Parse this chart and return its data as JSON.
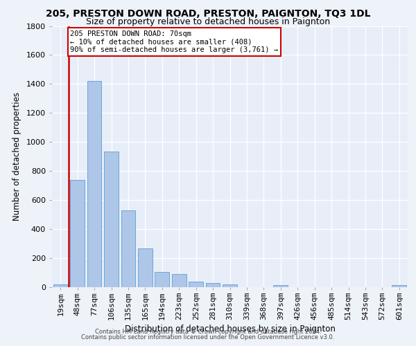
{
  "title1": "205, PRESTON DOWN ROAD, PRESTON, PAIGNTON, TQ3 1DL",
  "title2": "Size of property relative to detached houses in Paignton",
  "xlabel": "Distribution of detached houses by size in Paignton",
  "ylabel": "Number of detached properties",
  "footer1": "Contains HM Land Registry data © Crown copyright and database right 2024.",
  "footer2": "Contains public sector information licensed under the Open Government Licence v3.0.",
  "categories": [
    "19sqm",
    "48sqm",
    "77sqm",
    "106sqm",
    "135sqm",
    "165sqm",
    "194sqm",
    "223sqm",
    "252sqm",
    "281sqm",
    "310sqm",
    "339sqm",
    "368sqm",
    "397sqm",
    "426sqm",
    "456sqm",
    "485sqm",
    "514sqm",
    "543sqm",
    "572sqm",
    "601sqm"
  ],
  "values": [
    20,
    740,
    1420,
    935,
    530,
    265,
    105,
    90,
    40,
    28,
    20,
    0,
    0,
    15,
    0,
    0,
    0,
    0,
    0,
    0,
    15
  ],
  "bar_color": "#aec6e8",
  "bar_edge_color": "#5a9fd4",
  "annotation_box_text": "205 PRESTON DOWN ROAD: 70sqm\n← 10% of detached houses are smaller (408)\n90% of semi-detached houses are larger (3,761) →",
  "vline_color": "#cc0000",
  "box_edge_color": "#cc0000",
  "ylim": [
    0,
    1800
  ],
  "background_color": "#eef2f9",
  "plot_background": "#e8eef8",
  "grid_color": "#ffffff",
  "title1_fontsize": 10,
  "title2_fontsize": 9,
  "xlabel_fontsize": 8.5,
  "ylabel_fontsize": 8.5,
  "tick_fontsize": 8,
  "annotation_fontsize": 7.5,
  "footer_fontsize": 6.0
}
